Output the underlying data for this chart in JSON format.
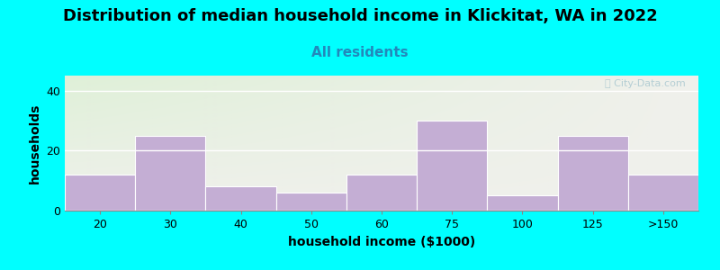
{
  "title": "Distribution of median household income in Klickitat, WA in 2022",
  "subtitle": "All residents",
  "xlabel": "household income ($1000)",
  "ylabel": "households",
  "background_color": "#00FFFF",
  "plot_bg_color_topleft": "#dff0d8",
  "plot_bg_color_topright": "#f0f0ec",
  "plot_bg_color_bottomleft": "#f0f0ec",
  "bar_color": "#c4aed4",
  "bar_edge_color": "#ffffff",
  "categories": [
    "20",
    "30",
    "40",
    "50",
    "60",
    "75",
    "100",
    "125",
    ">150"
  ],
  "values": [
    12,
    25,
    8,
    6,
    12,
    30,
    5,
    25,
    12
  ],
  "ylim": [
    0,
    45
  ],
  "yticks": [
    0,
    20,
    40
  ],
  "title_fontsize": 13,
  "subtitle_fontsize": 11,
  "subtitle_color": "#2288bb",
  "axis_label_fontsize": 10,
  "tick_fontsize": 9,
  "watermark_text": "ⓘ City-Data.com",
  "watermark_color": "#aac8d0"
}
